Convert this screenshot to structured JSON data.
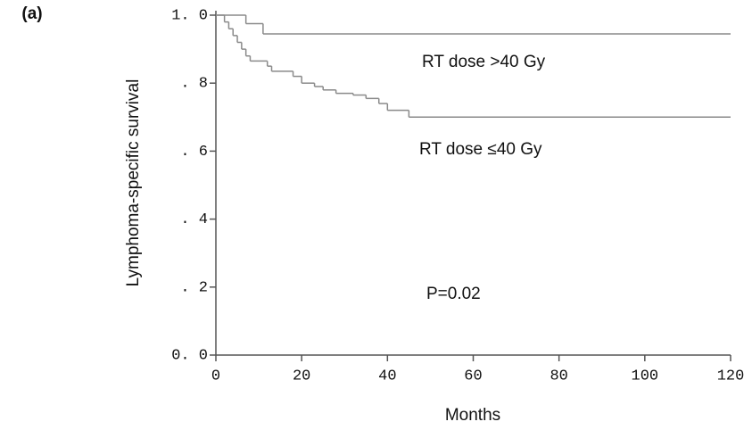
{
  "chart_data": {
    "type": "step",
    "panel_label": "(a)",
    "xlabel": "Months",
    "ylabel": "Lymphoma-specific survival",
    "xlim": [
      0,
      120
    ],
    "ylim": [
      0,
      1
    ],
    "xticks": [
      0,
      20,
      40,
      60,
      80,
      100,
      120
    ],
    "yticks": [
      {
        "value": 0,
        "label": "0. 0"
      },
      {
        "value": 0.2,
        "label": ". 2"
      },
      {
        "value": 0.4,
        "label": ". 4"
      },
      {
        "value": 0.6,
        "label": ". 6"
      },
      {
        "value": 0.8,
        "label": ". 8"
      },
      {
        "value": 1,
        "label": "1. 0"
      }
    ],
    "series": [
      {
        "name": "RT dose >40 Gy",
        "color": "#8a8a8a",
        "x": [
          0,
          7,
          11,
          120
        ],
        "values": [
          1.0,
          0.975,
          0.945,
          0.945
        ]
      },
      {
        "name": "RT dose ≤40 Gy",
        "color": "#8a8a8a",
        "x": [
          0,
          2,
          3,
          4,
          5,
          6,
          7,
          8,
          12,
          13,
          18,
          20,
          23,
          25,
          28,
          32,
          35,
          38,
          40,
          45,
          120
        ],
        "values": [
          1.0,
          0.98,
          0.96,
          0.94,
          0.92,
          0.9,
          0.88,
          0.865,
          0.85,
          0.835,
          0.82,
          0.8,
          0.79,
          0.78,
          0.77,
          0.765,
          0.755,
          0.74,
          0.72,
          0.7,
          0.7
        ]
      }
    ],
    "annotations": [
      "RT dose >40 Gy",
      "RT dose ≤40 Gy",
      "P=0.02"
    ]
  }
}
